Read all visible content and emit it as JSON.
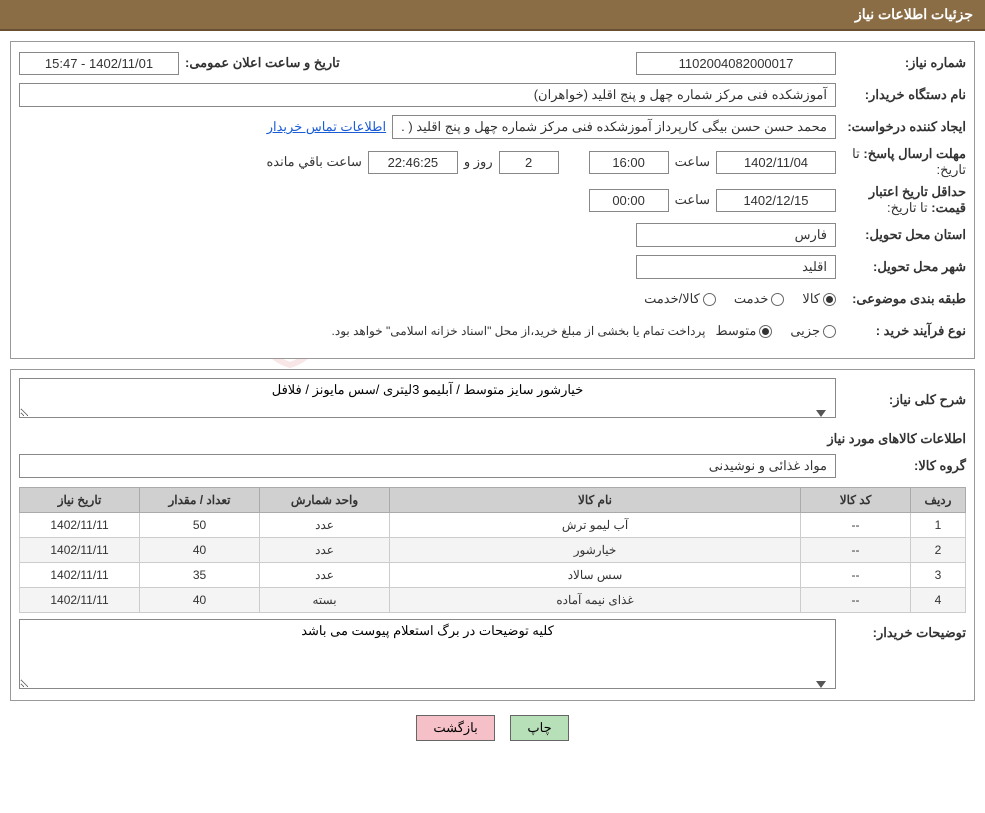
{
  "header": {
    "title": "جزئیات اطلاعات نیاز"
  },
  "fields": {
    "need_no_label": "شماره نیاز:",
    "need_no": "1102004082000017",
    "announce_label": "تاریخ و ساعت اعلان عمومی:",
    "announce_value": "1402/11/01 - 15:47",
    "buyer_org_label": "نام دستگاه خریدار:",
    "buyer_org": "آموزشکده فنی مرکز شماره چهل و پنج اقلید (خواهران)",
    "requester_label": "ایجاد کننده درخواست:",
    "requester": "محمد حسن حسن بیگی کارپرداز آموزشکده فنی مرکز شماره چهل و پنج اقلید ( .",
    "contact_link": "اطلاعات تماس خریدار",
    "deadline_label": "مهلت ارسال پاسخ:",
    "deadline_sub": "تا تاریخ:",
    "deadline_date": "1402/11/04",
    "saat": "ساعت",
    "deadline_time": "16:00",
    "days": "2",
    "rooz_va": "روز و",
    "remain_time": "22:46:25",
    "remain_label": "ساعت باقي مانده",
    "validity_label": "حداقل تاریخ اعتبار قیمت:",
    "validity_sub": "تا تاریخ:",
    "validity_date": "1402/12/15",
    "validity_time": "00:00",
    "province_label": "استان محل تحویل:",
    "province": "فارس",
    "city_label": "شهر محل تحویل:",
    "city": "اقلید",
    "category_label": "طبقه بندی موضوعی:",
    "cat_goods": "کالا",
    "cat_service": "خدمت",
    "cat_both": "کالا/خدمت",
    "process_label": "نوع فرآیند خرید :",
    "proc_partial": "جزیی",
    "proc_medium": "متوسط",
    "process_note": "پرداخت تمام یا بخشی از مبلغ خرید،از محل \"اسناد خزانه اسلامی\" خواهد بود.",
    "desc_label": "شرح کلی نیاز:",
    "desc_value": "خیارشور سایز متوسط / آبلیمو 3لیتری /سس مایونز / فلافل",
    "items_title": "اطلاعات کالاهای مورد نیاز",
    "group_label": "گروه کالا:",
    "group_value": "مواد غذائی و نوشیدنی",
    "buyer_notes_label": "توضیحات خریدار:",
    "buyer_notes": "کلیه توضیحات در برگ استعلام پیوست می باشد"
  },
  "table": {
    "headers": {
      "row": "ردیف",
      "code": "کد کالا",
      "name": "نام کالا",
      "unit": "واحد شمارش",
      "qty": "تعداد / مقدار",
      "date": "تاریخ نیاز"
    },
    "rows": [
      {
        "n": "1",
        "code": "--",
        "name": "آب لیمو ترش",
        "unit": "عدد",
        "qty": "50",
        "date": "1402/11/11"
      },
      {
        "n": "2",
        "code": "--",
        "name": "خیارشور",
        "unit": "عدد",
        "qty": "40",
        "date": "1402/11/11"
      },
      {
        "n": "3",
        "code": "--",
        "name": "سس سالاد",
        "unit": "عدد",
        "qty": "35",
        "date": "1402/11/11"
      },
      {
        "n": "4",
        "code": "--",
        "name": "غذای نیمه آماده",
        "unit": "بسته",
        "qty": "40",
        "date": "1402/11/11"
      }
    ]
  },
  "buttons": {
    "print": "چاپ",
    "back": "بازگشت"
  },
  "watermark": {
    "text": "AriaTender.net"
  }
}
